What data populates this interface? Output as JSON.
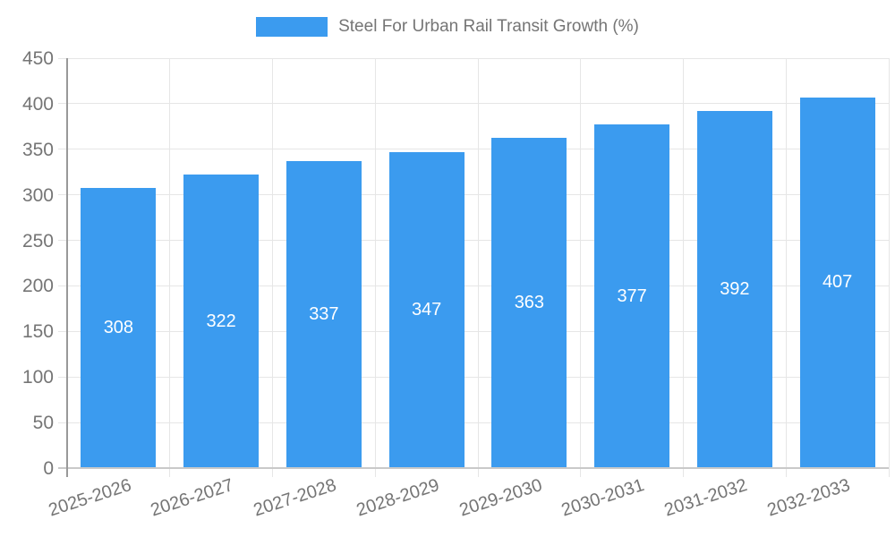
{
  "chart_data": {
    "type": "bar",
    "title": "Steel For Urban Rail Transit Growth (%)",
    "categories": [
      "2025-2026",
      "2026-2027",
      "2027-2028",
      "2028-2029",
      "2029-2030",
      "2030-2031",
      "2031-2032",
      "2032-2033"
    ],
    "values": [
      308,
      322,
      337,
      347,
      363,
      377,
      392,
      407
    ],
    "xlabel": "",
    "ylabel": "",
    "ylim": [
      0,
      450
    ],
    "ytick_step": 50,
    "ytick_labels": [
      "0",
      "50",
      "100",
      "150",
      "200",
      "250",
      "300",
      "350",
      "400",
      "450"
    ],
    "grid": true,
    "legend_position": "top-center",
    "value_labels": "centered-inside-bars",
    "colors": {
      "bar": "#3b9bef",
      "grid": "#e6e6e6",
      "axis_line": "#999999",
      "baseline": "#c9c9c9",
      "axis_text": "#757575",
      "value_label": "#ffffff"
    }
  }
}
